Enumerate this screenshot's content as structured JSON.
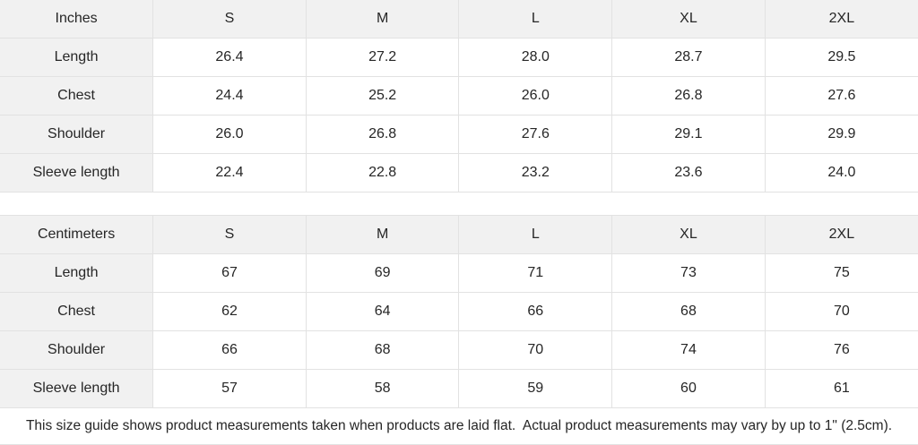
{
  "tables": [
    {
      "unit_label": "Inches",
      "sizes": [
        "S",
        "M",
        "L",
        "XL",
        "2XL"
      ],
      "rows": [
        {
          "label": "Length",
          "values": [
            "26.4",
            "27.2",
            "28.0",
            "28.7",
            "29.5"
          ]
        },
        {
          "label": "Chest",
          "values": [
            "24.4",
            "25.2",
            "26.0",
            "26.8",
            "27.6"
          ]
        },
        {
          "label": "Shoulder",
          "values": [
            "26.0",
            "26.8",
            "27.6",
            "29.1",
            "29.9"
          ]
        },
        {
          "label": "Sleeve length",
          "values": [
            "22.4",
            "22.8",
            "23.2",
            "23.6",
            "24.0"
          ]
        }
      ]
    },
    {
      "unit_label": "Centimeters",
      "sizes": [
        "S",
        "M",
        "L",
        "XL",
        "2XL"
      ],
      "rows": [
        {
          "label": "Length",
          "values": [
            "67",
            "69",
            "71",
            "73",
            "75"
          ]
        },
        {
          "label": "Chest",
          "values": [
            "62",
            "64",
            "66",
            "68",
            "70"
          ]
        },
        {
          "label": "Shoulder",
          "values": [
            "66",
            "68",
            "70",
            "74",
            "76"
          ]
        },
        {
          "label": "Sleeve length",
          "values": [
            "57",
            "58",
            "59",
            "60",
            "61"
          ]
        }
      ]
    }
  ],
  "footer": {
    "note": "This size guide shows product measurements taken when products are laid flat.  Actual product measurements may vary by up to 1\" (2.5cm)."
  },
  "colors": {
    "header_bg": "#f1f1f1",
    "cell_bg": "#ffffff",
    "border": "#e2e2e2",
    "text": "#262626"
  }
}
